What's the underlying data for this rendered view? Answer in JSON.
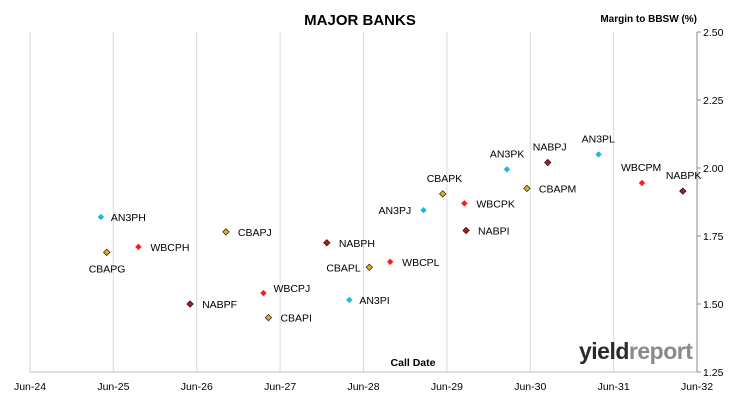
{
  "chart_data": {
    "type": "scatter",
    "title": "MAJOR BANKS",
    "ylabel": "Margin to BBSW (%)",
    "xlabel": "Call Date",
    "x_ticks": [
      "Jun-24",
      "Jun-25",
      "Jun-26",
      "Jun-27",
      "Jun-28",
      "Jun-29",
      "Jun-30",
      "Jun-31",
      "Jun-32"
    ],
    "y_ticks": [
      "1.25",
      "1.50",
      "1.75",
      "2.00",
      "2.25",
      "2.50"
    ],
    "ylim": [
      1.25,
      2.5
    ],
    "grid": "vertical",
    "y_axis_position": "right",
    "colors": {
      "ANZ": "#1ab8e0",
      "WBC": "#ff1a1a",
      "CBA": "#e8a825",
      "NAB": "#b01c26"
    },
    "points": [
      {
        "label": "AN3PH",
        "x": 2025.35,
        "y": 1.82,
        "issuer": "ANZ"
      },
      {
        "label": "CBAPG",
        "x": 2025.42,
        "y": 1.69,
        "issuer": "CBA"
      },
      {
        "label": "WBCPH",
        "x": 2025.8,
        "y": 1.71,
        "issuer": "WBC"
      },
      {
        "label": "NABPF",
        "x": 2026.42,
        "y": 1.5,
        "issuer": "NAB"
      },
      {
        "label": "CBAPJ",
        "x": 2026.85,
        "y": 1.765,
        "issuer": "CBA"
      },
      {
        "label": "WBCPJ",
        "x": 2027.3,
        "y": 1.54,
        "issuer": "WBC"
      },
      {
        "label": "CBAPI",
        "x": 2027.36,
        "y": 1.45,
        "issuer": "CBA"
      },
      {
        "label": "NABPH",
        "x": 2028.06,
        "y": 1.725,
        "issuer": "NAB"
      },
      {
        "label": "AN3PI",
        "x": 2028.33,
        "y": 1.515,
        "issuer": "ANZ"
      },
      {
        "label": "CBAPL",
        "x": 2028.57,
        "y": 1.635,
        "issuer": "CBA"
      },
      {
        "label": "WBCPL",
        "x": 2028.82,
        "y": 1.655,
        "issuer": "WBC"
      },
      {
        "label": "AN3PJ",
        "x": 2029.22,
        "y": 1.845,
        "issuer": "ANZ"
      },
      {
        "label": "CBAPK",
        "x": 2029.45,
        "y": 1.905,
        "issuer": "CBA"
      },
      {
        "label": "WBCPK",
        "x": 2029.71,
        "y": 1.87,
        "issuer": "WBC"
      },
      {
        "label": "NABPI",
        "x": 2029.73,
        "y": 1.77,
        "issuer": "NAB"
      },
      {
        "label": "AN3PK",
        "x": 2030.22,
        "y": 1.995,
        "issuer": "ANZ"
      },
      {
        "label": "CBAPM",
        "x": 2030.46,
        "y": 1.925,
        "issuer": "CBA"
      },
      {
        "label": "NABPJ",
        "x": 2030.71,
        "y": 2.02,
        "issuer": "NAB"
      },
      {
        "label": "AN3PL",
        "x": 2031.32,
        "y": 2.05,
        "issuer": "ANZ"
      },
      {
        "label": "WBCPM",
        "x": 2031.84,
        "y": 1.945,
        "issuer": "WBC"
      },
      {
        "label": "NABPK",
        "x": 2032.33,
        "y": 1.915,
        "issuer": "NAB"
      }
    ]
  },
  "logo": {
    "part1": "yield",
    "part2": "report"
  }
}
